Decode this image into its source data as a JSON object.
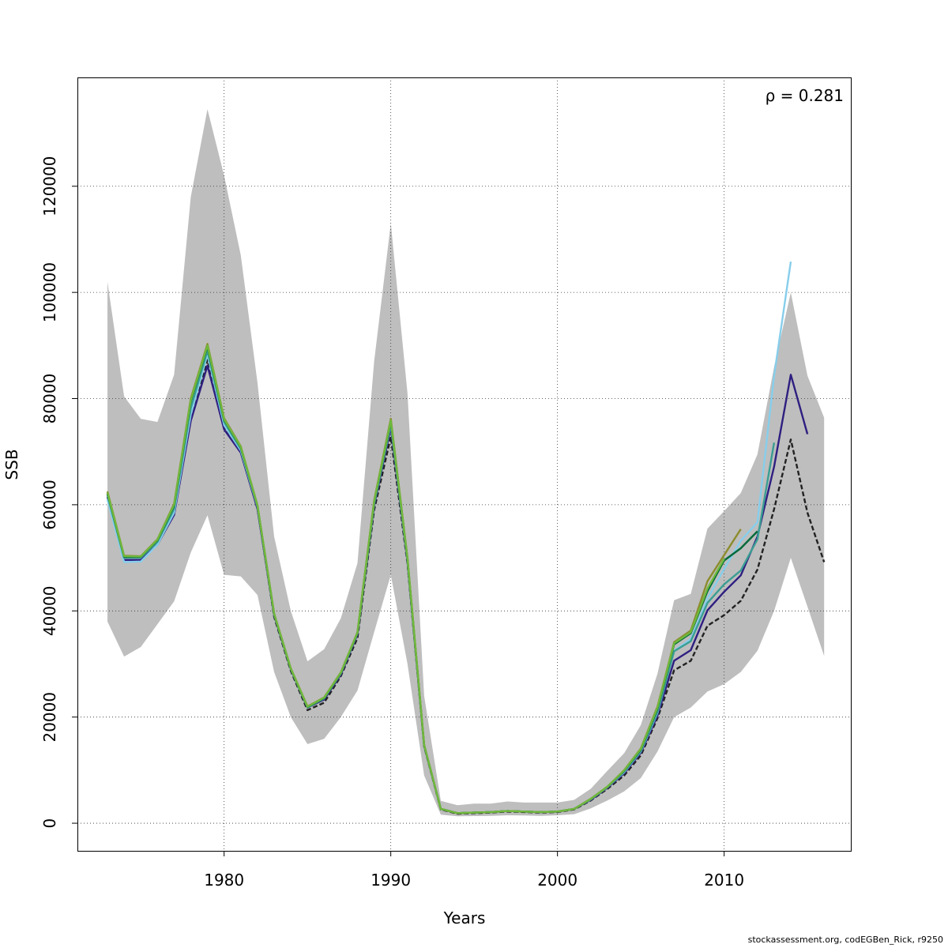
{
  "footer": "stockassessment.org, codEGBen_Rick, r9250",
  "chart_data": {
    "type": "line",
    "title": "",
    "xlabel": "Years",
    "ylabel": "SSB",
    "annotation": "ρ = 0.281",
    "xlim": [
      1971.2,
      2017.6
    ],
    "ylim": [
      -5200,
      140500
    ],
    "x_ticks": [
      1980,
      1990,
      2000,
      2010
    ],
    "y_ticks": [
      0,
      20000,
      40000,
      60000,
      80000,
      100000,
      120000
    ],
    "grid": true,
    "legend": "none",
    "band_color": "#bebebe",
    "confidence_band": {
      "x": [
        1973,
        1974,
        1975,
        1976,
        1977,
        1978,
        1979,
        1980,
        1981,
        1982,
        1983,
        1984,
        1985,
        1986,
        1987,
        1988,
        1989,
        1990,
        1991,
        1992,
        1993,
        1994,
        1995,
        1996,
        1997,
        1998,
        1999,
        2000,
        2001,
        2002,
        2003,
        2004,
        2005,
        2006,
        2007,
        2008,
        2009,
        2010,
        2011,
        2012,
        2013,
        2014,
        2015,
        2016
      ],
      "lower": [
        38000,
        31400,
        33200,
        37500,
        41800,
        51000,
        58000,
        46800,
        46500,
        43000,
        28500,
        20000,
        14900,
        15900,
        20000,
        25000,
        36000,
        46800,
        30000,
        9000,
        1600,
        1300,
        1350,
        1400,
        1500,
        1450,
        1400,
        1500,
        1700,
        2800,
        4300,
        6000,
        8500,
        13500,
        20000,
        21800,
        24800,
        26200,
        28500,
        32500,
        40000,
        50000,
        40800,
        31500
      ],
      "upper": [
        102000,
        80400,
        76200,
        75600,
        84500,
        118000,
        134500,
        122000,
        107000,
        83000,
        54000,
        40000,
        30500,
        32800,
        38600,
        49000,
        87000,
        113000,
        81000,
        24000,
        4200,
        3400,
        3700,
        3700,
        4100,
        3900,
        3900,
        3900,
        4400,
        6500,
        9900,
        13200,
        18500,
        28200,
        42000,
        43200,
        55500,
        58800,
        62200,
        69500,
        86000,
        100000,
        84300,
        76400
      ]
    },
    "series": [
      {
        "color": "#222222",
        "dashed": true,
        "x": [
          1973,
          1974,
          1975,
          1976,
          1977,
          1978,
          1979,
          1980,
          1981,
          1982,
          1983,
          1984,
          1985,
          1986,
          1987,
          1988,
          1989,
          1990,
          1991,
          1992,
          1993,
          1994,
          1995,
          1996,
          1997,
          1998,
          1999,
          2000,
          2001,
          2002,
          2003,
          2004,
          2005,
          2006,
          2007,
          2008,
          2009,
          2010,
          2011,
          2012,
          2013,
          2014,
          2015,
          2016
        ],
        "values": [
          62000,
          50100,
          50100,
          52700,
          58400,
          76500,
          87300,
          74800,
          70000,
          59500,
          38900,
          28700,
          21300,
          22700,
          27700,
          34900,
          59000,
          72800,
          48900,
          14500,
          2600,
          1800,
          1900,
          2000,
          2200,
          2100,
          2000,
          2100,
          2600,
          4300,
          6500,
          9000,
          12800,
          19800,
          28800,
          30600,
          37200,
          39200,
          41900,
          47800,
          59200,
          72300,
          58500,
          49200
        ]
      },
      {
        "color": "#2f1f80",
        "dashed": false,
        "x": [
          1973,
          1974,
          1975,
          1976,
          1977,
          1978,
          1979,
          1980,
          1981,
          1982,
          1983,
          1984,
          1985,
          1986,
          1987,
          1988,
          1989,
          1990,
          1991,
          1992,
          1993,
          1994,
          1995,
          1996,
          1997,
          1998,
          1999,
          2000,
          2001,
          2002,
          2003,
          2004,
          2005,
          2006,
          2007,
          2008,
          2009,
          2010,
          2011,
          2012,
          2013,
          2014,
          2015
        ],
        "values": [
          61500,
          49600,
          49600,
          52500,
          58100,
          75800,
          86200,
          74200,
          69800,
          59200,
          39200,
          29000,
          21800,
          23300,
          28000,
          35600,
          59800,
          74600,
          49300,
          14600,
          2700,
          1900,
          2000,
          2100,
          2300,
          2200,
          2100,
          2200,
          2700,
          4400,
          6700,
          9400,
          13300,
          20300,
          30600,
          32600,
          40100,
          43600,
          46700,
          54000,
          67200,
          84500,
          73300
        ]
      },
      {
        "color": "#87ceeb",
        "dashed": false,
        "x": [
          1973,
          1974,
          1975,
          1976,
          1977,
          1978,
          1979,
          1980,
          1981,
          1982,
          1983,
          1984,
          1985,
          1986,
          1987,
          1988,
          1989,
          1990,
          1991,
          1992,
          1993,
          1994,
          1995,
          1996,
          1997,
          1998,
          1999,
          2000,
          2001,
          2002,
          2003,
          2004,
          2005,
          2006,
          2007,
          2008,
          2009,
          2010,
          2011,
          2012,
          2013,
          2014
        ],
        "values": [
          61000,
          49200,
          49300,
          52500,
          58500,
          77000,
          88300,
          75000,
          70200,
          59600,
          39400,
          29100,
          21900,
          23600,
          28200,
          35800,
          60200,
          75200,
          49500,
          14700,
          2700,
          1900,
          2000,
          2100,
          2300,
          2200,
          2100,
          2200,
          2700,
          4500,
          6800,
          9600,
          13500,
          20800,
          32500,
          34700,
          42300,
          47900,
          53200,
          56700,
          84300,
          105800
        ]
      },
      {
        "color": "#3a9e93",
        "dashed": false,
        "x": [
          1973,
          1974,
          1975,
          1976,
          1977,
          1978,
          1979,
          1980,
          1981,
          1982,
          1983,
          1984,
          1985,
          1986,
          1987,
          1988,
          1989,
          1990,
          1991,
          1992,
          1993,
          1994,
          1995,
          1996,
          1997,
          1998,
          1999,
          2000,
          2001,
          2002,
          2003,
          2004,
          2005,
          2006,
          2007,
          2008,
          2009,
          2010,
          2011,
          2012,
          2013
        ],
        "values": [
          61800,
          50000,
          50000,
          53000,
          59200,
          78200,
          89000,
          75600,
          70500,
          59700,
          39300,
          29000,
          21800,
          23500,
          28200,
          35800,
          60100,
          75300,
          49600,
          14700,
          2700,
          1900,
          2000,
          2100,
          2300,
          2200,
          2100,
          2200,
          2700,
          4500,
          6800,
          9700,
          13600,
          21000,
          32400,
          34300,
          41500,
          45000,
          47600,
          53500,
          71700
        ]
      },
      {
        "color": "#006a3a",
        "dashed": false,
        "x": [
          1973,
          1974,
          1975,
          1976,
          1977,
          1978,
          1979,
          1980,
          1981,
          1982,
          1983,
          1984,
          1985,
          1986,
          1987,
          1988,
          1989,
          1990,
          1991,
          1992,
          1993,
          1994,
          1995,
          1996,
          1997,
          1998,
          1999,
          2000,
          2001,
          2002,
          2003,
          2004,
          2005,
          2006,
          2007,
          2008,
          2009,
          2010,
          2011,
          2012
        ],
        "values": [
          62200,
          50200,
          50200,
          53300,
          59800,
          79500,
          89800,
          76000,
          70800,
          59800,
          39400,
          29100,
          21900,
          23600,
          28300,
          35900,
          60500,
          75800,
          49800,
          14700,
          2700,
          1900,
          2000,
          2100,
          2300,
          2200,
          2100,
          2200,
          2700,
          4600,
          6900,
          9900,
          13900,
          21600,
          33700,
          35800,
          43700,
          49500,
          51800,
          55000
        ]
      },
      {
        "color": "#8c8c2e",
        "dashed": false,
        "x": [
          1973,
          1974,
          1975,
          1976,
          1977,
          1978,
          1979,
          1980,
          1981,
          1982,
          1983,
          1984,
          1985,
          1986,
          1987,
          1988,
          1989,
          1990,
          1991,
          1992,
          1993,
          1994,
          1995,
          1996,
          1997,
          1998,
          1999,
          2000,
          2001,
          2002,
          2003,
          2004,
          2005,
          2006,
          2007,
          2008,
          2009,
          2010,
          2011
        ],
        "values": [
          62500,
          50400,
          50300,
          53500,
          60200,
          80000,
          90300,
          76300,
          71000,
          59900,
          39500,
          29200,
          22000,
          23700,
          28400,
          36000,
          60800,
          76200,
          50000,
          14800,
          2700,
          1900,
          2000,
          2100,
          2300,
          2200,
          2100,
          2200,
          2700,
          4600,
          6900,
          10000,
          14100,
          22000,
          34100,
          36300,
          45600,
          50500,
          55400
        ]
      },
      {
        "color": "#6fb83c",
        "dashed": false,
        "x": [
          1973,
          1974,
          1975,
          1976,
          1977,
          1978,
          1979,
          1980,
          1981,
          1982,
          1983,
          1984,
          1985,
          1986,
          1987,
          1988,
          1989,
          1990,
          1991,
          1992,
          1993,
          1994,
          1995,
          1996,
          1997,
          1998,
          1999,
          2000,
          2001,
          2002,
          2003,
          2004,
          2005,
          2006,
          2007,
          2008,
          2009,
          2010
        ],
        "values": [
          62300,
          50300,
          50250,
          53400,
          60000,
          79700,
          90000,
          76100,
          70900,
          59850,
          39450,
          29150,
          21950,
          23650,
          28350,
          35950,
          60600,
          75900,
          49900,
          14750,
          2700,
          1900,
          2000,
          2100,
          2300,
          2200,
          2100,
          2200,
          2700,
          4600,
          6900,
          9950,
          14000,
          21800,
          33900,
          36000,
          44200,
          49800
        ]
      }
    ]
  }
}
